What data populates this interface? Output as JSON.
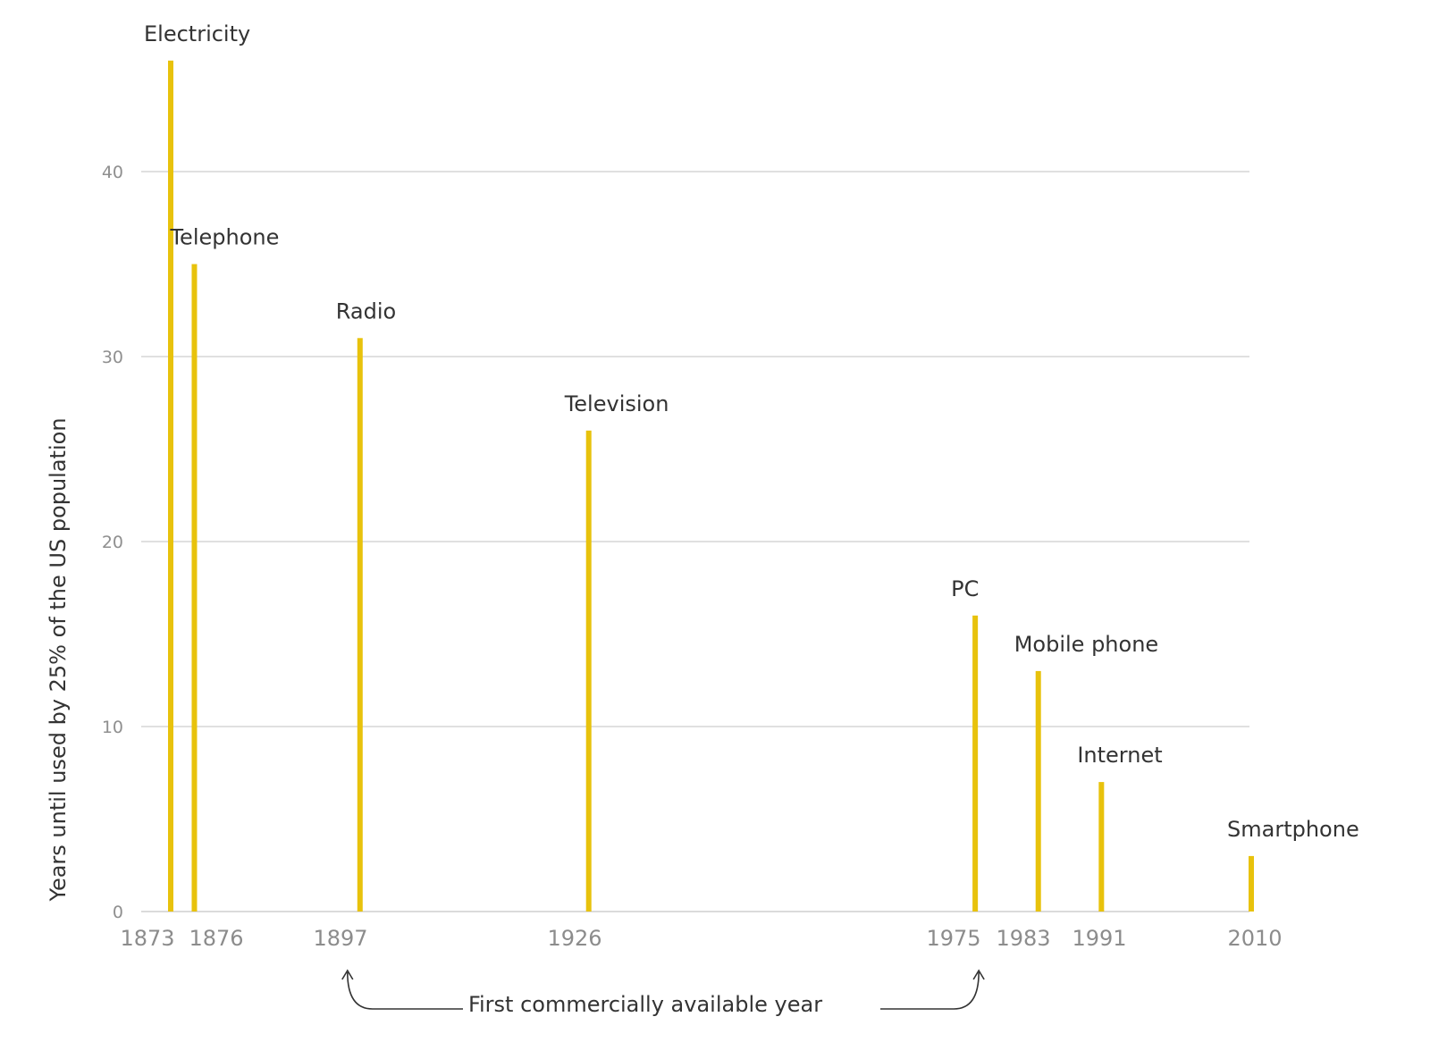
{
  "chart_data": {
    "type": "bar",
    "title": "",
    "xlabel": "",
    "ylabel": "Years until used by 25% of the US population",
    "ylim": [
      0,
      46
    ],
    "yticks": [
      0,
      10,
      20,
      30,
      40
    ],
    "grid": true,
    "data": [
      {
        "name": "Electricity",
        "year": "1873",
        "years": 46
      },
      {
        "name": "Telephone",
        "year": "1876",
        "years": 35
      },
      {
        "name": "Radio",
        "year": "1897",
        "years": 31
      },
      {
        "name": "Television",
        "year": "1926",
        "years": 26
      },
      {
        "name": "PC",
        "year": "1975",
        "years": 16
      },
      {
        "name": "Mobile phone",
        "year": "1983",
        "years": 13
      },
      {
        "name": "Internet",
        "year": "1991",
        "years": 7
      },
      {
        "name": "Smartphone",
        "year": "2010",
        "years": 3
      }
    ],
    "annotation": {
      "text": "First commercially available year",
      "from_year": "1897",
      "to_year": "1975"
    },
    "colors": {
      "bar": "#e8c20c"
    }
  }
}
